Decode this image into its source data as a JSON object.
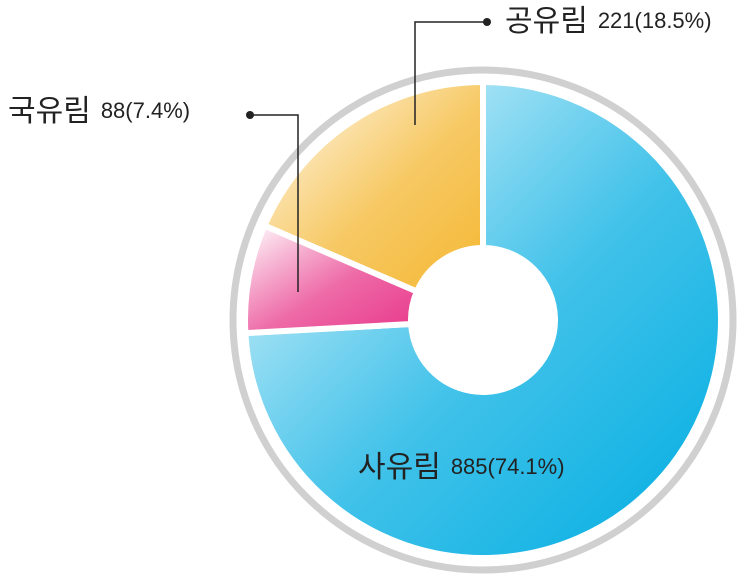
{
  "chart_data": {
    "type": "donut",
    "categories": [
      "사유림",
      "국유림",
      "공유림"
    ],
    "values": [
      885,
      88,
      221
    ],
    "value_labels": [
      "885(74.1%)",
      "88(7.4%)",
      "221(18.5%)"
    ],
    "colors": [
      "#00ade2",
      "#e8388a",
      "#f4b731"
    ]
  }
}
